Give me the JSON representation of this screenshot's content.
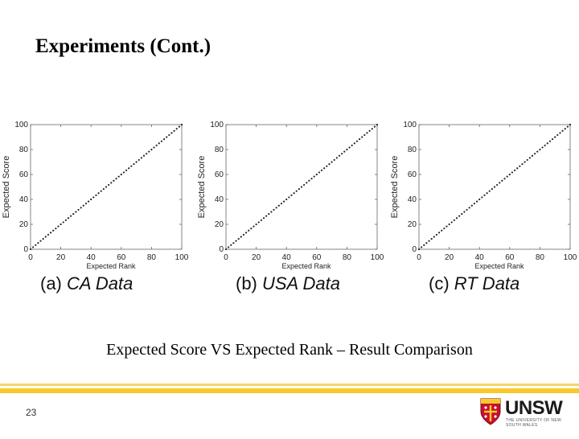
{
  "slide": {
    "title": "Experiments (Cont.)",
    "caption": "Expected Score VS Expected Rank – Result Comparison",
    "page_number": "23"
  },
  "logo": {
    "word": "UNSW",
    "subtitle": "THE UNIVERSITY OF NEW SOUTH WALES",
    "colors": {
      "shield": "#c8102e",
      "accent": "#f7c92b"
    }
  },
  "chart_data": [
    {
      "type": "scatter",
      "panel_label": "(a)",
      "panel_name": "CA Data",
      "xlabel": "Expected Rank",
      "ylabel": "Expected Score",
      "xlim": [
        0,
        100
      ],
      "ylim": [
        0,
        100
      ],
      "xticks": [
        "0",
        "20",
        "40",
        "60",
        "80",
        "100"
      ],
      "yticks": [
        "0",
        "20",
        "40",
        "60",
        "80",
        "100"
      ],
      "series": [
        {
          "x_start": 0,
          "x_end": 100,
          "y_start": 0,
          "y_end": 100,
          "pattern": "y ≈ x"
        }
      ]
    },
    {
      "type": "scatter",
      "panel_label": "(b)",
      "panel_name": "USA Data",
      "xlabel": "Expected Rank",
      "ylabel": "Expected Score",
      "xlim": [
        0,
        100
      ],
      "ylim": [
        0,
        100
      ],
      "xticks": [
        "0",
        "20",
        "40",
        "60",
        "80",
        "100"
      ],
      "yticks": [
        "0",
        "20",
        "40",
        "60",
        "80",
        "100"
      ],
      "series": [
        {
          "x_start": 0,
          "x_end": 100,
          "y_start": 0,
          "y_end": 100,
          "pattern": "y ≈ x"
        }
      ]
    },
    {
      "type": "scatter",
      "panel_label": "(c)",
      "panel_name": "RT Data",
      "xlabel": "Expected Rank",
      "ylabel": "Expected Score",
      "xlim": [
        0,
        100
      ],
      "ylim": [
        0,
        100
      ],
      "xticks": [
        "0",
        "20",
        "40",
        "60",
        "80",
        "100"
      ],
      "yticks": [
        "0",
        "20",
        "40",
        "60",
        "80",
        "100"
      ],
      "series": [
        {
          "x_start": 0,
          "x_end": 100,
          "y_start": 0,
          "y_end": 100,
          "pattern": "y ≈ x"
        }
      ]
    }
  ]
}
